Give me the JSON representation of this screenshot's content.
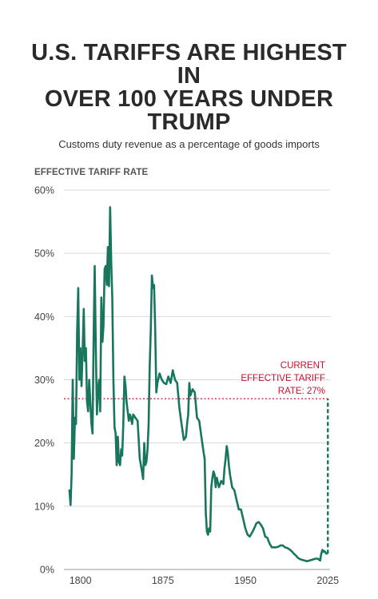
{
  "title_lines": [
    "U.S. TARIFFS ARE HIGHEST",
    "IN",
    "OVER 100 YEARS UNDER",
    "TRUMP"
  ],
  "subtitle": "Customs duty revenue as a percentage of goods imports",
  "colors": {
    "line": "#17765d",
    "reference": "#c8102e",
    "grid": "#d9d9d9",
    "text": "#2a2a2a"
  },
  "chart_data": {
    "type": "line",
    "title": "U.S. TARIFFS ARE HIGHEST IN OVER 100 YEARS UNDER TRUMP",
    "subtitle": "Customs duty revenue as a percentage of goods imports",
    "ylabel": "EFFECTIVE TARIFF RATE",
    "xlabel": "",
    "xlim": [
      1785,
      2027
    ],
    "ylim": [
      0,
      60
    ],
    "y_ticks": [
      0,
      10,
      20,
      30,
      40,
      50,
      60
    ],
    "y_tick_labels": [
      "0%",
      "10%",
      "20%",
      "30%",
      "40%",
      "50%",
      "60%"
    ],
    "x_ticks": [
      1800,
      1875,
      1950,
      2025
    ],
    "x_tick_labels": [
      "1800",
      "1875",
      "1950",
      "2025"
    ],
    "grid": "horizontal",
    "series": [
      {
        "values_x": [
          1790,
          1791,
          1792,
          1793,
          1794,
          1795,
          1796,
          1797,
          1798,
          1799,
          1800,
          1801,
          1802,
          1803,
          1804,
          1805,
          1806,
          1807,
          1808,
          1809,
          1810,
          1811,
          1812,
          1813,
          1814,
          1815,
          1816,
          1817,
          1818,
          1819,
          1820,
          1821,
          1822,
          1823,
          1824,
          1825,
          1826,
          1827,
          1828,
          1829,
          1830,
          1831,
          1832,
          1833,
          1834,
          1835,
          1836,
          1837,
          1838,
          1839,
          1840,
          1841,
          1842,
          1843,
          1844,
          1845,
          1846,
          1847,
          1848,
          1850,
          1852,
          1854,
          1856,
          1857,
          1858,
          1859,
          1860,
          1861,
          1862,
          1863,
          1864,
          1865,
          1866,
          1867,
          1868,
          1869,
          1870,
          1872,
          1874,
          1876,
          1878,
          1880,
          1882,
          1884,
          1886,
          1888,
          1890,
          1892,
          1894,
          1896,
          1897,
          1898,
          1899,
          1900,
          1902,
          1904,
          1906,
          1908,
          1910,
          1912,
          1913,
          1914,
          1915,
          1916,
          1917,
          1918,
          1919,
          1920,
          1921,
          1922,
          1923,
          1924,
          1926,
          1928,
          1930,
          1931,
          1932,
          1933,
          1934,
          1935,
          1936,
          1938,
          1940,
          1942,
          1944,
          1946,
          1948,
          1950,
          1952,
          1954,
          1956,
          1958,
          1960,
          1962,
          1964,
          1966,
          1968,
          1970,
          1972,
          1974,
          1976,
          1978,
          1980,
          1982,
          1984,
          1986,
          1988,
          1990,
          1992,
          1994,
          1996,
          1998,
          2000,
          2002,
          2004,
          2006,
          2008,
          2010,
          2012,
          2014,
          2016,
          2018,
          2019,
          2020,
          2021,
          2022,
          2023,
          2024,
          2025
        ],
        "values": [
          12.5,
          10.2,
          15.0,
          30.0,
          17.5,
          24.0,
          23.0,
          37.5,
          44.5,
          30.0,
          35.0,
          29.0,
          34.5,
          41.2,
          33.0,
          35.0,
          26.5,
          25.0,
          30.0,
          26.5,
          23.0,
          21.5,
          37.0,
          48.0,
          35.0,
          24.5,
          28.5,
          30.0,
          25.0,
          43.0,
          36.0,
          38.5,
          47.5,
          48.0,
          45.0,
          51.0,
          44.8,
          57.3,
          48.5,
          43.0,
          30.0,
          22.5,
          21.5,
          16.5,
          21.0,
          17.0,
          16.5,
          19.0,
          18.0,
          23.0,
          30.5,
          29.0,
          26.5,
          25.0,
          23.5,
          24.5,
          24.0,
          23.0,
          24.5,
          24.0,
          23.5,
          17.5,
          15.5,
          14.3,
          20.0,
          16.5,
          17.0,
          19.0,
          23.0,
          32.0,
          38.0,
          46.5,
          44.5,
          45.0,
          38.0,
          28.0,
          29.5,
          31.0,
          30.0,
          29.5,
          29.3,
          30.5,
          29.5,
          31.5,
          30.0,
          29.5,
          25.5,
          23.0,
          20.5,
          21.0,
          23.0,
          24.5,
          29.5,
          27.5,
          28.5,
          28.0,
          24.0,
          23.5,
          21.0,
          18.5,
          17.5,
          9.0,
          6.0,
          5.5,
          6.5,
          6.0,
          13.0,
          14.5,
          15.5,
          15.0,
          13.0,
          14.5,
          13.0,
          14.0,
          13.5,
          16.0,
          17.5,
          19.5,
          18.5,
          16.5,
          15.0,
          13.0,
          12.5,
          11.0,
          9.5,
          9.5,
          8.0,
          6.5,
          5.5,
          5.2,
          5.8,
          6.5,
          7.3,
          7.5,
          7.1,
          6.5,
          5.2,
          5.0,
          4.1,
          3.5,
          3.5,
          3.5,
          3.6,
          3.8,
          3.8,
          3.5,
          3.4,
          3.2,
          2.9,
          2.5,
          2.2,
          1.8,
          1.6,
          1.5,
          1.4,
          1.3,
          1.4,
          1.5,
          1.6,
          1.7,
          1.7,
          1.4,
          2.5,
          3.1,
          2.8,
          2.9,
          2.6,
          2.5,
          2.7
        ]
      }
    ],
    "reference_line": {
      "y": 27,
      "label": "CURRENT EFFECTIVE TARIFF RATE: 27%"
    },
    "current_jump": {
      "x": 2025,
      "from": 2.5,
      "to": 27
    },
    "annotations": [
      "CURRENT",
      "EFFECTIVE TARIFF",
      "RATE: 27%"
    ]
  }
}
